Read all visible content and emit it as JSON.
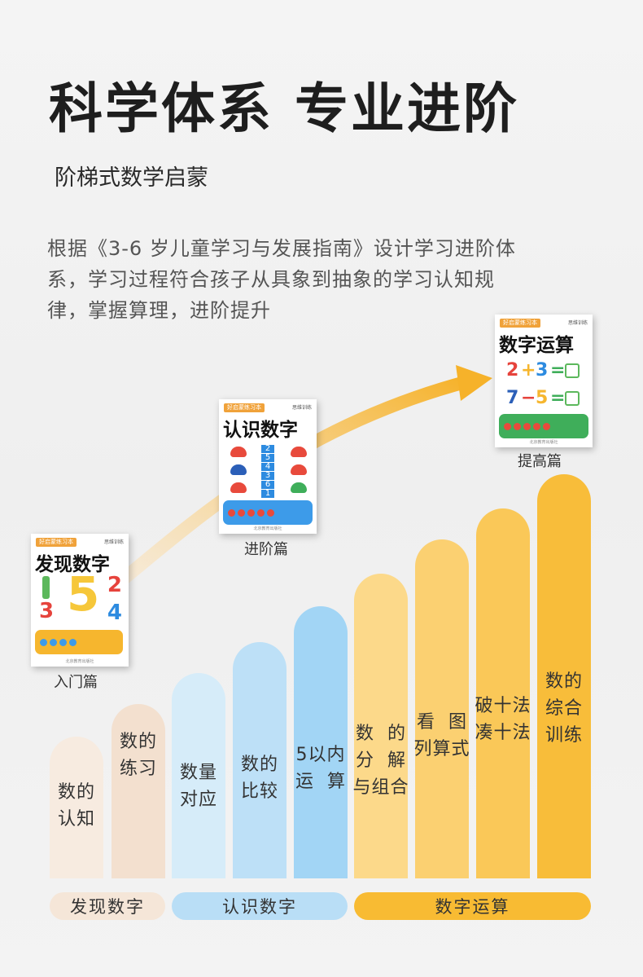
{
  "header": {
    "title": "科学体系 专业进阶",
    "subtitle": "阶梯式数学启蒙",
    "description_lines": [
      "根据《3-6 岁儿童学习与发展指南》设计学习进阶体",
      "系，学习过程符合孩子从具象到抽象的学习认知规",
      "律，掌握算理，进阶提升"
    ]
  },
  "books": [
    {
      "series": "好启蒙练习本",
      "brand": "思维训练",
      "title": "发现数字",
      "label": "入门篇",
      "numbers": [
        "5",
        "2",
        "3",
        "4"
      ],
      "publisher": "北京教育出版社"
    },
    {
      "series": "好启蒙练习本",
      "brand": "思维训练",
      "title": "认识数字",
      "label": "进阶篇",
      "numbers": [
        "2",
        "5",
        "4",
        "3",
        "6",
        "1"
      ],
      "publisher": "北京教育出版社"
    },
    {
      "series": "好启蒙练习本",
      "brand": "思维训练",
      "title": "数字运算",
      "label": "提高篇",
      "equations": [
        {
          "a": "2",
          "op": "+",
          "b": "3",
          "eq": "="
        },
        {
          "a": "7",
          "op": "−",
          "b": "5",
          "eq": "="
        }
      ],
      "publisher": "北京教育出版社"
    }
  ],
  "bars": [
    {
      "label": "数的\n认知",
      "color": "#f7ebe0"
    },
    {
      "label": "数的\n练习",
      "color": "#f3e0cf"
    },
    {
      "label": "数量\n对应",
      "color": "#d6ecf9"
    },
    {
      "label": "数的\n比较",
      "color": "#bde0f7"
    },
    {
      "label": "5以内\n运  算",
      "color": "#a2d5f5"
    },
    {
      "label": "数  的\n分  解\n与组合",
      "color": "#fcd98a"
    },
    {
      "label": "看  图\n列算式",
      "color": "#fbd071"
    },
    {
      "label": "破十法\n凑十法",
      "color": "#fac858"
    },
    {
      "label": "数的\n综合\n训练",
      "color": "#f8bd3a"
    }
  ],
  "bands": [
    {
      "label": "发现数字",
      "color": "#f5e6d8"
    },
    {
      "label": "认识数字",
      "color": "#b9def6"
    },
    {
      "label": "数字运算",
      "color": "#f8bb33"
    }
  ],
  "colors": {
    "arrow_start": "#fbe2b8",
    "arrow_end": "#f6b22a",
    "tray_yellow": "#f6b62e",
    "tray_blue": "#3d9be9",
    "tray_green": "#3fae5a"
  }
}
